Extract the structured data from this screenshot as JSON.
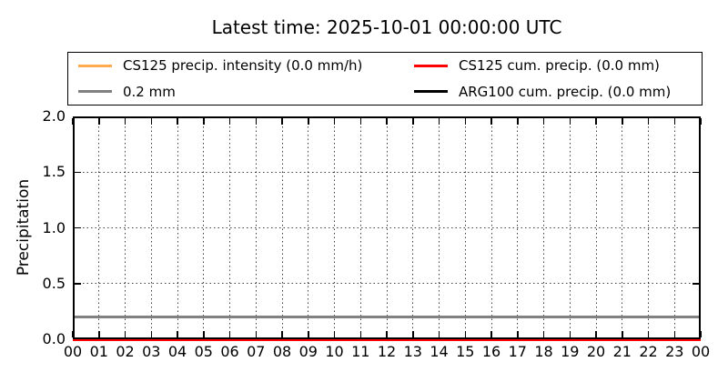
{
  "title": "Latest time: 2025-10-01 00:00:00 UTC",
  "chart_data": {
    "type": "line",
    "title": "Latest time: 2025-10-01 00:00:00 UTC",
    "xlabel": "",
    "ylabel": "Precipitation",
    "xlim_hours": [
      0,
      24
    ],
    "ylim": [
      0.0,
      2.0
    ],
    "ytick_values": [
      0.0,
      0.5,
      1.0,
      1.5,
      2.0
    ],
    "ytick_labels": [
      "0.0",
      "0.5",
      "1.0",
      "1.5",
      "2.0"
    ],
    "xtick_values": [
      0,
      1,
      2,
      3,
      4,
      5,
      6,
      7,
      8,
      9,
      10,
      11,
      12,
      13,
      14,
      15,
      16,
      17,
      18,
      19,
      20,
      21,
      22,
      23,
      24
    ],
    "xtick_labels": [
      "00",
      "01",
      "02",
      "03",
      "04",
      "05",
      "06",
      "07",
      "08",
      "09",
      "10",
      "11",
      "12",
      "13",
      "14",
      "15",
      "16",
      "17",
      "18",
      "19",
      "20",
      "21",
      "22",
      "23",
      "00"
    ],
    "grid": {
      "style": "dotted",
      "color": "#000000",
      "vertical_at_every_hour": true,
      "horizontal_every": 0.5
    },
    "legend_position": "top-center, 2 columns, above axes",
    "series": [
      {
        "name": "cs125-precip-intensity",
        "legend_label": "CS125 precip. intensity (0.0 mm/h)",
        "color": "#ffaa4e",
        "constant_value": 0.0,
        "unit": "mm/h"
      },
      {
        "name": "reference-0.2mm",
        "legend_label": "0.2 mm",
        "color": "#808080",
        "constant_value": 0.2,
        "unit": "mm"
      },
      {
        "name": "cs125-cum-precip",
        "legend_label": "CS125 cum. precip. (0.0 mm)",
        "color": "#ff0000",
        "constant_value": 0.0,
        "unit": "mm"
      },
      {
        "name": "arg100-cum-precip",
        "legend_label": "ARG100 cum. precip. (0.0 mm)",
        "color": "#000000",
        "constant_value": 0.0,
        "unit": "mm"
      }
    ],
    "colors": {
      "axes": "#000000",
      "grid": "#000000",
      "background": "#ffffff"
    }
  }
}
